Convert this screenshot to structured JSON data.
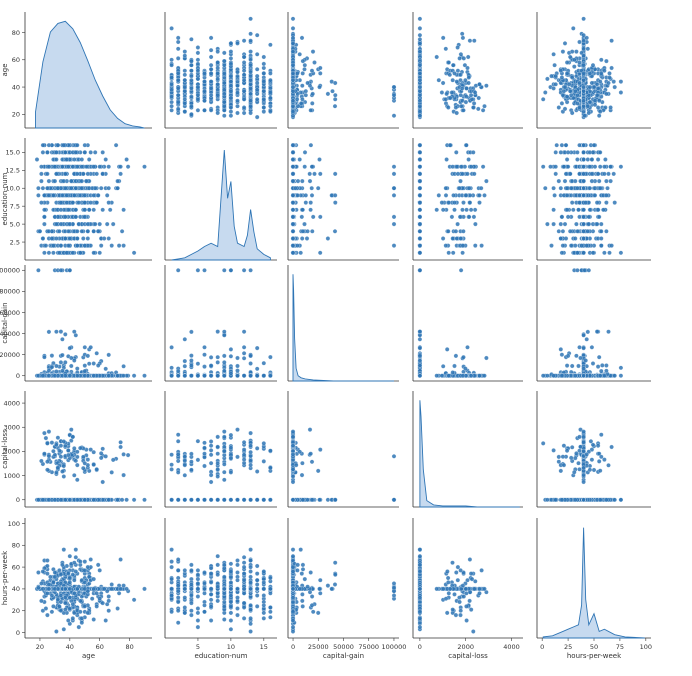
{
  "chart_data": {
    "type": "scatter-matrix",
    "title": "",
    "variables": [
      "age",
      "education-num",
      "capital-gain",
      "capital-loss",
      "hours-per-week"
    ],
    "axis_ranges": {
      "age": [
        10,
        95
      ],
      "education-num": [
        0,
        17
      ],
      "capital-gain": [
        -5000,
        105000
      ],
      "capital-loss": [
        -300,
        4500
      ],
      "hours-per-week": [
        -5,
        105
      ]
    },
    "x_ticks": {
      "age": [
        20,
        40,
        60,
        80
      ],
      "education-num": [
        5,
        10,
        15
      ],
      "capital-gain": [
        0,
        25000,
        50000,
        75000,
        100000
      ],
      "capital-loss": [
        0,
        2000,
        4000
      ],
      "hours-per-week": [
        0,
        25,
        50,
        75,
        100
      ]
    },
    "y_ticks": {
      "age": [
        20,
        40,
        60,
        80
      ],
      "education-num": [
        2.5,
        5.0,
        7.5,
        10.0,
        12.5,
        15.0
      ],
      "capital-gain": [
        0,
        20000,
        40000,
        60000,
        80000,
        100000
      ],
      "capital-loss": [
        0,
        1000,
        2000,
        3000,
        4000
      ],
      "hours-per-week": [
        0,
        20,
        40,
        60,
        80,
        100
      ]
    },
    "x_tick_labels": {
      "age": [
        "20",
        "40",
        "60",
        "80"
      ],
      "education-num": [
        "5",
        "10",
        "15"
      ],
      "capital-gain": [
        "0",
        "25000",
        "50000",
        "75000",
        "100000"
      ],
      "capital-loss": [
        "0",
        "2000",
        "4000"
      ],
      "hours-per-week": [
        "0",
        "25",
        "50",
        "75",
        "100"
      ]
    },
    "y_tick_labels": {
      "age": [
        "20",
        "40",
        "60",
        "80"
      ],
      "education-num": [
        "2.5",
        "5.0",
        "7.5",
        "10.0",
        "12.5",
        "15.0"
      ],
      "capital-gain": [
        "0",
        "20000",
        "40000",
        "60000",
        "80000",
        "100000"
      ],
      "capital-loss": [
        "0",
        "1000",
        "2000",
        "3000",
        "4000"
      ],
      "hours-per-week": [
        "0",
        "20",
        "40",
        "60",
        "80",
        "100"
      ]
    },
    "diagonal_kde": {
      "age": {
        "x": [
          17,
          22,
          27,
          32,
          37,
          42,
          47,
          52,
          57,
          62,
          67,
          72,
          77,
          82,
          87,
          90
        ],
        "density": [
          0.15,
          0.62,
          0.9,
          0.98,
          1.0,
          0.93,
          0.8,
          0.63,
          0.45,
          0.3,
          0.17,
          0.09,
          0.04,
          0.02,
          0.01,
          0.0
        ]
      },
      "education-num": {
        "x": [
          1,
          2,
          3,
          4,
          5,
          6,
          7,
          8,
          9,
          9.5,
          10,
          10.5,
          11,
          12,
          12.5,
          13,
          13.5,
          14,
          15,
          16
        ],
        "density": [
          0.0,
          0.01,
          0.02,
          0.05,
          0.08,
          0.12,
          0.15,
          0.12,
          0.98,
          0.55,
          0.7,
          0.3,
          0.15,
          0.12,
          0.22,
          0.45,
          0.25,
          0.1,
          0.05,
          0.02
        ]
      },
      "capital-gain": {
        "x": [
          0,
          500,
          1500,
          3000,
          5000,
          8000,
          12000,
          20000,
          40000,
          70000,
          100000
        ],
        "density": [
          1.0,
          0.85,
          0.4,
          0.12,
          0.05,
          0.03,
          0.02,
          0.01,
          0.0,
          0.0,
          0.0
        ]
      },
      "capital-loss": {
        "x": [
          0,
          50,
          150,
          300,
          600,
          1000,
          1500,
          2000,
          2500,
          3500,
          4356
        ],
        "density": [
          1.0,
          0.85,
          0.35,
          0.06,
          0.02,
          0.01,
          0.01,
          0.01,
          0.0,
          0.0,
          0.0
        ]
      },
      "hours-per-week": {
        "x": [
          1,
          10,
          20,
          25,
          30,
          35,
          38,
          40,
          42,
          45,
          50,
          55,
          60,
          70,
          80,
          99
        ],
        "density": [
          0.01,
          0.02,
          0.06,
          0.08,
          0.1,
          0.12,
          0.3,
          1.0,
          0.35,
          0.12,
          0.22,
          0.06,
          0.08,
          0.03,
          0.01,
          0.0
        ]
      }
    },
    "series_color": "#2f75b5",
    "kde_fill": "#a9c6e6"
  }
}
